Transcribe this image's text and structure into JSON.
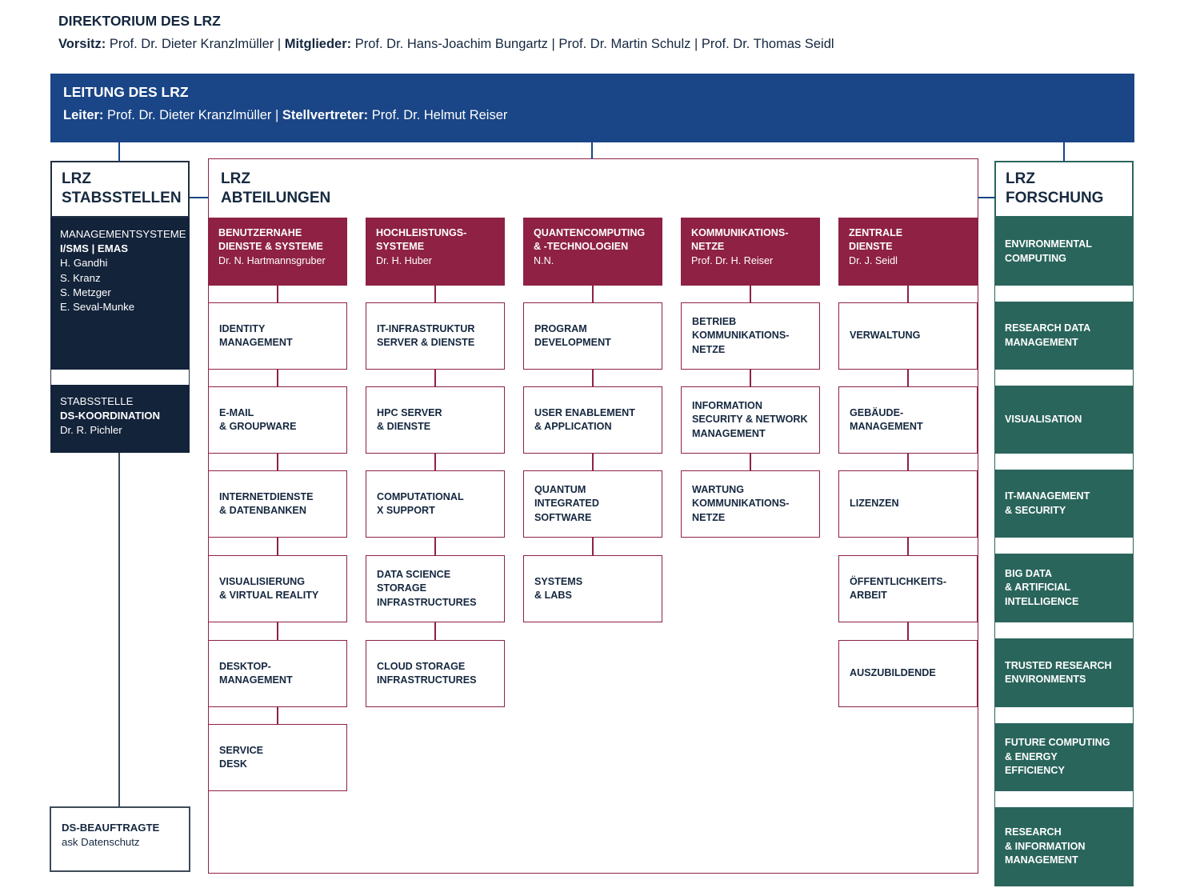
{
  "direktorium": {
    "title": "DIREKTORIUM DES LRZ",
    "parts": [
      {
        "label": "Vorsitz:",
        "text": " Prof. Dr. Dieter Kranzlmüller | "
      },
      {
        "label": "Mitglieder:",
        "text": " Prof. Dr. Hans-Joachim Bungartz | Prof. Dr. Martin Schulz | Prof. Dr. Thomas Seidl"
      }
    ]
  },
  "leitung": {
    "title": "LEITUNG DES LRZ",
    "parts": [
      {
        "label": "Leiter:",
        "text": " Prof. Dr. Dieter Kranzlmüller | "
      },
      {
        "label": "Stellvertreter:",
        "text": " Prof. Dr. Helmut Reiser"
      }
    ]
  },
  "stabsstellen": {
    "header": "LRZ\nSTABSSTELLEN",
    "boxes": [
      {
        "lines": [
          {
            "t": "MANAGEMENTSYSTEME",
            "b": false
          },
          {
            "t": "I/SMS | EMAS",
            "b": true
          },
          {
            "t": "H. Gandhi",
            "b": false
          },
          {
            "t": "S. Kranz",
            "b": false
          },
          {
            "t": "S. Metzger",
            "b": false
          },
          {
            "t": "E. Seval-Munke",
            "b": false
          }
        ]
      },
      {
        "lines": [
          {
            "t": "STABSSTELLE",
            "b": false
          },
          {
            "t": "DS-KOORDINATION",
            "b": true
          },
          {
            "t": "Dr. R. Pichler",
            "b": false
          }
        ]
      }
    ]
  },
  "abteilungen": {
    "header": "LRZ\nABTEILUNGEN",
    "columns": [
      {
        "title": "BENUTZERNAHE\nDIENSTE & SYSTEME",
        "name": "Dr. N. Hartmannsgruber",
        "boxes": [
          "IDENTITY\nMANAGEMENT",
          "E-MAIL\n& GROUPWARE",
          "INTERNETDIENSTE\n& DATENBANKEN",
          "VISUALISIERUNG\n& VIRTUAL REALITY",
          "DESKTOP-\nMANAGEMENT",
          "SERVICE\nDESK"
        ]
      },
      {
        "title": "HOCHLEISTUNGS-\nSYSTEME",
        "name": "Dr. H. Huber",
        "boxes": [
          "IT-INFRASTRUKTUR\nSERVER & DIENSTE",
          "HPC SERVER\n& DIENSTE",
          "COMPUTATIONAL\nX SUPPORT",
          "DATA SCIENCE\nSTORAGE\nINFRASTRUCTURES",
          "CLOUD STORAGE\nINFRASTRUCTURES"
        ]
      },
      {
        "title": "QUANTENCOMPUTING\n& -TECHNOLOGIEN",
        "name": "N.N.",
        "boxes": [
          "PROGRAM\nDEVELOPMENT",
          "USER ENABLEMENT\n& APPLICATION",
          "QUANTUM\nINTEGRATED\nSOFTWARE",
          "SYSTEMS\n& LABS"
        ]
      },
      {
        "title": "KOMMUNIKATIONS-\nNETZE",
        "name": "Prof. Dr. H. Reiser",
        "boxes": [
          "BETRIEB\nKOMMUNIKATIONS-\nNETZE",
          "INFORMATION\nSECURITY & NETWORK\nMANAGEMENT",
          "WARTUNG\nKOMMUNIKATIONS-\nNETZE"
        ]
      },
      {
        "title": "ZENTRALE\nDIENSTE",
        "name": "Dr. J. Seidl",
        "boxes": [
          "VERWALTUNG",
          "GEBÄUDE-\nMANAGEMENT",
          "LIZENZEN",
          "ÖFFENTLICHKEITS-\nARBEIT",
          "AUSZUBILDENDE"
        ]
      }
    ]
  },
  "forschung": {
    "header": "LRZ\nFORSCHUNG",
    "boxes": [
      "ENVIRONMENTAL\nCOMPUTING",
      "RESEARCH DATA\nMANAGEMENT",
      "VISUALISATION",
      "IT-MANAGEMENT\n& SECURITY",
      "BIG DATA\n& ARTIFICIAL\nINTELLIGENCE",
      "TRUSTED RESEARCH\nENVIRONMENTS",
      "FUTURE COMPUTING\n& ENERGY\nEFFICIENCY",
      "RESEARCH\n& INFORMATION\nMANAGEMENT"
    ]
  },
  "ds_beauftragte": {
    "line1": "DS-BEAUFTRAGTE",
    "line2": "ask Datenschutz"
  },
  "colors": {
    "leadership_blue": "#1a4586",
    "staff_navy": "#13233a",
    "department_maroon": "#8e2144",
    "research_teal": "#2a655c",
    "text_navy": "#15273f",
    "ds_border_slate": "#3d4a5b"
  }
}
